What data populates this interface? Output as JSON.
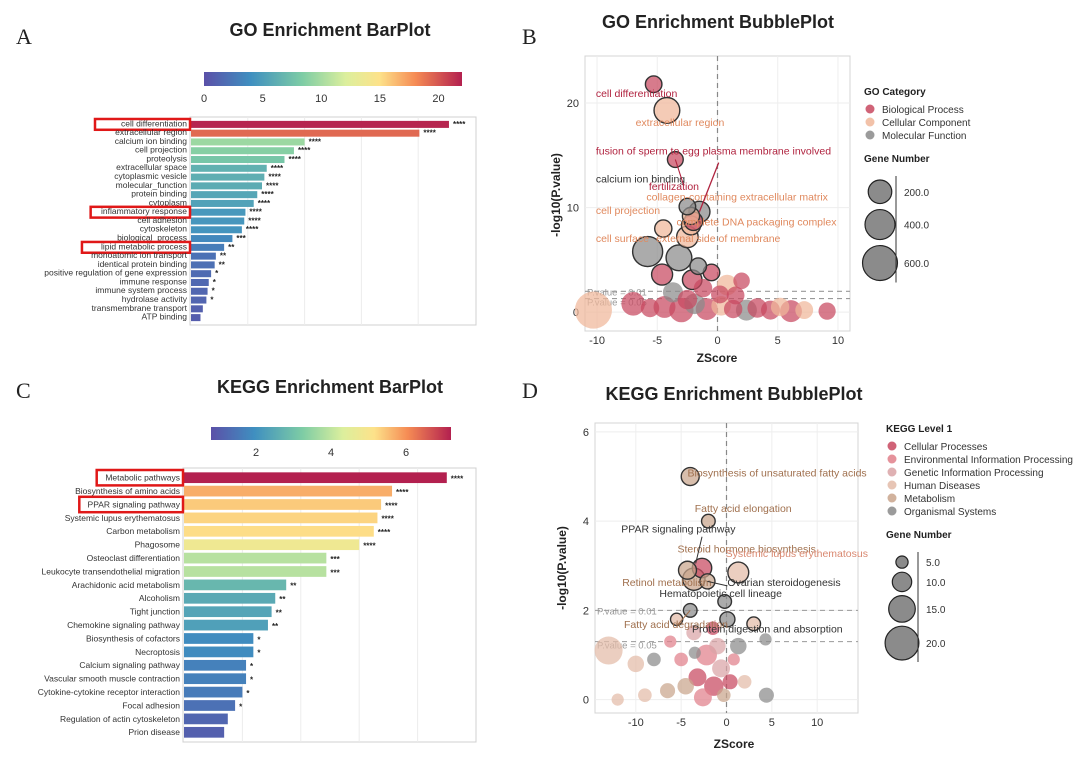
{
  "chart_data": [
    {
      "id": "A",
      "panel_label": "A",
      "type": "bar",
      "title": "GO Enrichment BarPlot",
      "orientation": "horizontal",
      "colorbar_ticks": [
        "0",
        "5",
        "10",
        "15",
        "20"
      ],
      "colorbar_range": [
        0,
        22
      ],
      "xlim": [
        0,
        24
      ],
      "highlighted": [
        "cell differentiation",
        "inflammatory response",
        "lipid metabolic process"
      ],
      "categories": [
        "cell differentiation",
        "extracellular region",
        "calcium ion binding",
        "cell projection",
        "proteolysis",
        "extracellular space",
        "cytoplasmic vesicle",
        "molecular_function",
        "protein binding",
        "cytoplasm",
        "inflammatory response",
        "cell adhesion",
        "cytoskeleton",
        "biological_process",
        "lipid metabolic process",
        "monoatomic ion transport",
        "identical protein binding",
        "positive regulation of gene expression",
        "immune response",
        "immune system process",
        "hydrolase activity",
        "transmembrane transport",
        "ATP binding"
      ],
      "values": [
        21.8,
        19.3,
        9.6,
        8.7,
        7.9,
        6.4,
        6.2,
        6.0,
        5.6,
        5.3,
        4.6,
        4.5,
        4.3,
        3.5,
        2.8,
        2.1,
        2.0,
        1.7,
        1.5,
        1.4,
        1.3,
        1.0,
        0.8
      ],
      "significance": [
        "****",
        "****",
        "****",
        "****",
        "****",
        "****",
        "****",
        "****",
        "****",
        "****",
        "****",
        "****",
        "****",
        "***",
        "**",
        "**",
        "**",
        "*",
        "*",
        "*",
        "*",
        "",
        ""
      ]
    },
    {
      "id": "B",
      "panel_label": "B",
      "type": "scatter",
      "title": "GO Enrichment BubblePlot",
      "xlabel": "ZScore",
      "ylabel": "-log10(P.value)",
      "xlim": [
        -11,
        11
      ],
      "ylim": [
        -1.8,
        24.5
      ],
      "xticks": [
        -10,
        -5,
        0,
        5,
        10
      ],
      "yticks": [
        0,
        10,
        20
      ],
      "thresholds": [
        {
          "y": 2.0,
          "label": "P.value = 0.01"
        },
        {
          "y": 1.3,
          "label": "P.value = 0.05"
        }
      ],
      "legend_title": "GO Category",
      "categories": [
        {
          "name": "Biological Process",
          "color": "#c8485f"
        },
        {
          "name": "Cellular Component",
          "color": "#f0b79a"
        },
        {
          "name": "Molecular Function",
          "color": "#8a8a8a"
        }
      ],
      "size_legend_title": "Gene Number",
      "size_legend": [
        "200.0",
        "400.0",
        "600.0"
      ],
      "size_values": [
        200,
        400,
        600
      ],
      "points": [
        {
          "x": -5.3,
          "y": 21.8,
          "size": 60,
          "cat": 0
        },
        {
          "x": -4.2,
          "y": 19.3,
          "size": 260,
          "cat": 1
        },
        {
          "x": -3.5,
          "y": 14.6,
          "size": 50,
          "cat": 0
        },
        {
          "x": -2.5,
          "y": 10.1,
          "size": 60,
          "cat": 2
        },
        {
          "x": -1.5,
          "y": 9.6,
          "size": 140,
          "cat": 2
        },
        {
          "x": -2.2,
          "y": 9.2,
          "size": 70,
          "cat": 1
        },
        {
          "x": -2.0,
          "y": 8.7,
          "size": 90,
          "cat": 0
        },
        {
          "x": -2.2,
          "y": 8.3,
          "size": 100,
          "cat": 1
        },
        {
          "x": -4.5,
          "y": 8.0,
          "size": 70,
          "cat": 1
        },
        {
          "x": -2.5,
          "y": 7.2,
          "size": 150,
          "cat": 1
        },
        {
          "x": -5.8,
          "y": 5.8,
          "size": 400,
          "cat": 2
        },
        {
          "x": -3.2,
          "y": 5.2,
          "size": 260,
          "cat": 2
        },
        {
          "x": -4.6,
          "y": 3.6,
          "size": 140,
          "cat": 0
        },
        {
          "x": -2.1,
          "y": 3.1,
          "size": 110,
          "cat": 0
        },
        {
          "x": 0.8,
          "y": 2.6,
          "size": 130,
          "cat": 1
        },
        {
          "x": -1.2,
          "y": 2.3,
          "size": 90,
          "cat": 0
        },
        {
          "x": 1.5,
          "y": 1.6,
          "size": 80,
          "cat": 0
        },
        {
          "x": -3.7,
          "y": 1.9,
          "size": 120,
          "cat": 2
        },
        {
          "x": -10.3,
          "y": 0.2,
          "size": 700,
          "cat": 1
        },
        {
          "x": -7.0,
          "y": 0.8,
          "size": 200,
          "cat": 0
        },
        {
          "x": -5.6,
          "y": 0.4,
          "size": 90,
          "cat": 0
        },
        {
          "x": -4.4,
          "y": 0.5,
          "size": 160,
          "cat": 0
        },
        {
          "x": -3.0,
          "y": 0.2,
          "size": 220,
          "cat": 0
        },
        {
          "x": -1.9,
          "y": 0.8,
          "size": 130,
          "cat": 2
        },
        {
          "x": -0.9,
          "y": 0.3,
          "size": 160,
          "cat": 0
        },
        {
          "x": 0.3,
          "y": 0.6,
          "size": 110,
          "cat": 1
        },
        {
          "x": 1.3,
          "y": 0.3,
          "size": 90,
          "cat": 0
        },
        {
          "x": 2.4,
          "y": 0.2,
          "size": 140,
          "cat": 2
        },
        {
          "x": 3.3,
          "y": 0.4,
          "size": 110,
          "cat": 0
        },
        {
          "x": 4.4,
          "y": 0.2,
          "size": 100,
          "cat": 0
        },
        {
          "x": 5.2,
          "y": 0.5,
          "size": 90,
          "cat": 1
        },
        {
          "x": 6.1,
          "y": 0.1,
          "size": 160,
          "cat": 0
        },
        {
          "x": 7.2,
          "y": 0.2,
          "size": 80,
          "cat": 1
        },
        {
          "x": 9.1,
          "y": 0.1,
          "size": 70,
          "cat": 0
        },
        {
          "x": -2.5,
          "y": 1.2,
          "size": 110,
          "cat": 0
        },
        {
          "x": 0.2,
          "y": 1.7,
          "size": 80,
          "cat": 0
        },
        {
          "x": -0.5,
          "y": 3.8,
          "size": 60,
          "cat": 0
        },
        {
          "x": -1.6,
          "y": 4.4,
          "size": 60,
          "cat": 2
        },
        {
          "x": 2.0,
          "y": 3.0,
          "size": 60,
          "cat": 0
        }
      ],
      "annotations": [
        {
          "text": "cell differentiation",
          "x": -10.1,
          "y": 20.6,
          "color": "#b0233f"
        },
        {
          "text": "extracellular region",
          "x": -6.8,
          "y": 17.8,
          "color": "#e0895e"
        },
        {
          "text": "fusion of sperm to egg plasma membrane involved",
          "x": -10.1,
          "y": 15.1,
          "color": "#b0233f"
        },
        {
          "text": "calcium ion binding",
          "x": -10.1,
          "y": 12.4,
          "color": "#333333"
        },
        {
          "text": "fertilization",
          "x": -5.7,
          "y": 11.7,
          "color": "#b0233f"
        },
        {
          "text": "collagen-containing extracellular matrix",
          "x": -5.9,
          "y": 10.7,
          "color": "#e0895e"
        },
        {
          "text": "cell projection",
          "x": -10.1,
          "y": 9.4,
          "color": "#e0895e"
        },
        {
          "text": "complete DNA packaging complex",
          "x": -3.4,
          "y": 8.3,
          "color": "#e0895e"
        },
        {
          "text": "cell surface",
          "x": -10.1,
          "y": 6.7,
          "color": "#e0895e"
        },
        {
          "text": "external side of membrane",
          "x": -5.1,
          "y": 6.7,
          "color": "#e0895e"
        }
      ],
      "threshold_labels": [
        "P.value = 0.01",
        "P.value = 0.05"
      ]
    },
    {
      "id": "C",
      "panel_label": "C",
      "type": "bar",
      "title": "KEGG Enrichment BarPlot",
      "orientation": "horizontal",
      "colorbar_ticks": [
        "2",
        "4",
        "6"
      ],
      "colorbar_range": [
        0.8,
        7.2
      ],
      "xlim": [
        0,
        8
      ],
      "highlighted": [
        "Metabolic pathways",
        "PPAR signaling pathway"
      ],
      "categories": [
        "Metabolic pathways",
        "Biosynthesis of amino acids",
        "PPAR signaling pathway",
        "Systemic lupus erythematosus",
        "Carbon metabolism",
        "Phagosome",
        "Osteoclast differentiation",
        "Leukocyte transendothelial migration",
        "Arachidonic acid metabolism",
        "Alcoholism",
        "Tight junction",
        "Chemokine signaling pathway",
        "Biosynthesis of cofactors",
        "Necroptosis",
        "Calcium signaling pathway",
        "Vascular smooth muscle contraction",
        "Cytokine-cytokine receptor interaction",
        "Focal adhesion",
        "Regulation of actin cytoskeleton",
        "Prion disease"
      ],
      "values": [
        7.2,
        5.7,
        5.4,
        5.3,
        5.2,
        4.8,
        3.9,
        3.9,
        2.8,
        2.5,
        2.4,
        2.3,
        1.9,
        1.9,
        1.7,
        1.7,
        1.6,
        1.4,
        1.2,
        1.1
      ],
      "significance": [
        "****",
        "****",
        "****",
        "****",
        "****",
        "****",
        "***",
        "***",
        "**",
        "**",
        "**",
        "**",
        "*",
        "*",
        "*",
        "*",
        "*",
        "*",
        "",
        ""
      ]
    },
    {
      "id": "D",
      "panel_label": "D",
      "type": "scatter",
      "title": "KEGG Enrichment BubblePlot",
      "xlabel": "ZScore",
      "ylabel": "-log10(P.value)",
      "xlim": [
        -14.5,
        14.5
      ],
      "ylim": [
        -0.3,
        6.2
      ],
      "xticks": [
        -10,
        -5,
        0,
        5,
        10
      ],
      "yticks": [
        0,
        2,
        4,
        6
      ],
      "thresholds": [
        {
          "y": 2.0,
          "label": "P.value = 0.01"
        },
        {
          "y": 1.3,
          "label": "P.value = 0.05"
        }
      ],
      "legend_title": "KEGG Level 1",
      "categories": [
        {
          "name": "Cellular Processes",
          "color": "#c8485f"
        },
        {
          "name": "Environmental Information Processing",
          "color": "#e07f8a"
        },
        {
          "name": "Genetic Information Processing",
          "color": "#d9a3a6"
        },
        {
          "name": "Human Diseases",
          "color": "#e3bba8"
        },
        {
          "name": "Metabolism",
          "color": "#c9a58c"
        },
        {
          "name": "Organismal Systems",
          "color": "#8a8a8a"
        }
      ],
      "size_legend_title": "Gene Number",
      "size_legend": [
        "5.0",
        "10.0",
        "15.0",
        "20.0"
      ],
      "size_values": [
        5,
        10,
        15,
        20
      ],
      "points": [
        {
          "x": -4.0,
          "y": 5.0,
          "size": 9,
          "cat": 4
        },
        {
          "x": -2.0,
          "y": 4.0,
          "size": 6,
          "cat": 4
        },
        {
          "x": -4.3,
          "y": 2.9,
          "size": 9,
          "cat": 4
        },
        {
          "x": -3.6,
          "y": 2.7,
          "size": 12,
          "cat": 4
        },
        {
          "x": -2.7,
          "y": 2.95,
          "size": 10,
          "cat": 0
        },
        {
          "x": 1.3,
          "y": 2.85,
          "size": 11,
          "cat": 3
        },
        {
          "x": -2.1,
          "y": 2.65,
          "size": 7,
          "cat": 4
        },
        {
          "x": -0.2,
          "y": 2.2,
          "size": 6,
          "cat": 5
        },
        {
          "x": -4.0,
          "y": 2.0,
          "size": 6,
          "cat": 5
        },
        {
          "x": 0.1,
          "y": 1.8,
          "size": 7,
          "cat": 5
        },
        {
          "x": 3.0,
          "y": 1.7,
          "size": 6,
          "cat": 3
        },
        {
          "x": -13.0,
          "y": 1.1,
          "size": 16,
          "cat": 3
        },
        {
          "x": -10.0,
          "y": 0.8,
          "size": 8,
          "cat": 3
        },
        {
          "x": -8.0,
          "y": 0.9,
          "size": 6,
          "cat": 5
        },
        {
          "x": -6.2,
          "y": 1.3,
          "size": 5,
          "cat": 1
        },
        {
          "x": -4.5,
          "y": 0.3,
          "size": 8,
          "cat": 4
        },
        {
          "x": -3.2,
          "y": 0.5,
          "size": 9,
          "cat": 0
        },
        {
          "x": -2.2,
          "y": 1.0,
          "size": 11,
          "cat": 1
        },
        {
          "x": -1.4,
          "y": 0.3,
          "size": 10,
          "cat": 0
        },
        {
          "x": -0.6,
          "y": 0.7,
          "size": 9,
          "cat": 2
        },
        {
          "x": 0.4,
          "y": 0.4,
          "size": 7,
          "cat": 0
        },
        {
          "x": 1.3,
          "y": 1.2,
          "size": 8,
          "cat": 5
        },
        {
          "x": 2.0,
          "y": 0.4,
          "size": 6,
          "cat": 3
        },
        {
          "x": 4.3,
          "y": 1.35,
          "size": 5,
          "cat": 5
        },
        {
          "x": 4.4,
          "y": 0.1,
          "size": 7,
          "cat": 5
        },
        {
          "x": -12.0,
          "y": 0.0,
          "size": 5,
          "cat": 3
        },
        {
          "x": -9.0,
          "y": 0.1,
          "size": 6,
          "cat": 3
        },
        {
          "x": -6.5,
          "y": 0.2,
          "size": 7,
          "cat": 4
        },
        {
          "x": -5.5,
          "y": 1.8,
          "size": 5,
          "cat": 3
        },
        {
          "x": -3.6,
          "y": 1.5,
          "size": 7,
          "cat": 2
        },
        {
          "x": -1.5,
          "y": 1.6,
          "size": 6,
          "cat": 0
        },
        {
          "x": -2.6,
          "y": 0.05,
          "size": 9,
          "cat": 1
        },
        {
          "x": -0.3,
          "y": 0.1,
          "size": 6,
          "cat": 4
        },
        {
          "x": -5.0,
          "y": 0.9,
          "size": 6,
          "cat": 1
        },
        {
          "x": -1.0,
          "y": 1.2,
          "size": 8,
          "cat": 2
        },
        {
          "x": -3.5,
          "y": 1.05,
          "size": 5,
          "cat": 5
        },
        {
          "x": 0.8,
          "y": 0.9,
          "size": 5,
          "cat": 1
        }
      ],
      "annotations": [
        {
          "text": "Biosynthesis of unsaturated fatty acids",
          "x": -4.3,
          "y": 5.0,
          "color": "#a0704e"
        },
        {
          "text": "Fatty acid elongation",
          "x": -3.5,
          "y": 4.2,
          "color": "#a0704e"
        },
        {
          "text": "PPAR signaling pathway",
          "x": -11.6,
          "y": 3.75,
          "color": "#333333"
        },
        {
          "text": "Steroid hormone biosynthesis",
          "x": -5.4,
          "y": 3.3,
          "color": "#a0704e"
        },
        {
          "text": "Systemic lupus erythematosus",
          "x": -0.1,
          "y": 3.2,
          "color": "#d98870"
        },
        {
          "text": "Retinol metabolism",
          "x": -11.5,
          "y": 2.55,
          "color": "#a0704e"
        },
        {
          "text": "Ovarian steroidogenesis",
          "x": 0.1,
          "y": 2.55,
          "color": "#333333"
        },
        {
          "text": "Hematopoietic cell lineage",
          "x": -7.4,
          "y": 2.3,
          "color": "#333333"
        },
        {
          "text": "Fatty acid degradation",
          "x": -11.3,
          "y": 1.6,
          "color": "#a0704e"
        },
        {
          "text": "Protein digestion and absorption",
          "x": -3.8,
          "y": 1.5,
          "color": "#333333"
        }
      ],
      "threshold_labels": [
        "P.value = 0.01",
        "P.value = 0.05"
      ]
    }
  ]
}
